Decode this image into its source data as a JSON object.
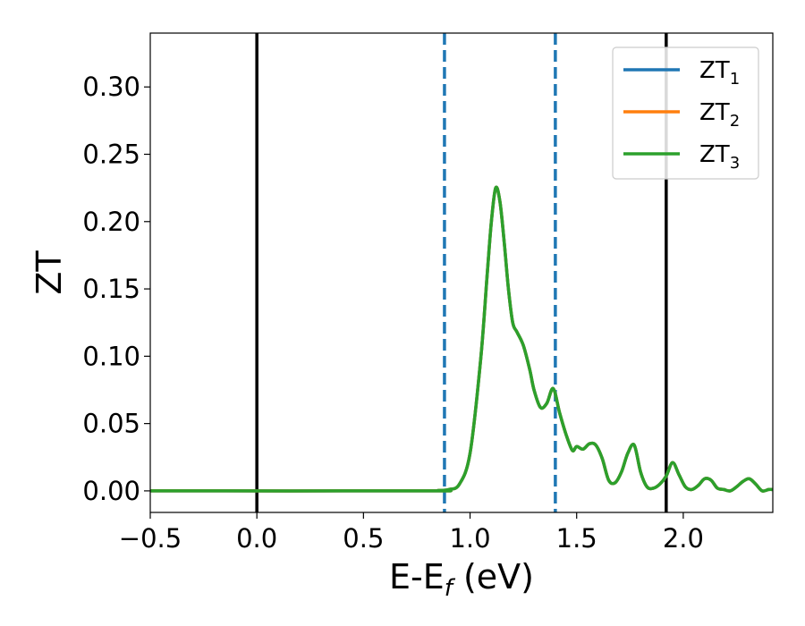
{
  "chart_data": {
    "type": "line",
    "xlabel": "E-E",
    "xlabel_sub": "f",
    "xlabel_unit": " (eV)",
    "ylabel": "ZT",
    "xlim": [
      -0.5,
      2.42
    ],
    "ylim": [
      -0.016,
      0.34
    ],
    "xticks": [
      -0.5,
      0.0,
      0.5,
      1.0,
      1.5,
      2.0
    ],
    "xtick_labels": [
      "−0.5",
      "0.0",
      "0.5",
      "1.0",
      "1.5",
      "2.0"
    ],
    "yticks": [
      0.0,
      0.05,
      0.1,
      0.15,
      0.2,
      0.25,
      0.3
    ],
    "ytick_labels": [
      "0.00",
      "0.05",
      "0.10",
      "0.15",
      "0.20",
      "0.25",
      "0.30"
    ],
    "grid": false,
    "legend_position": "top-right",
    "vlines": [
      {
        "x": 0.0,
        "style": "solid",
        "color": "#000000"
      },
      {
        "x": 1.92,
        "style": "solid",
        "color": "#000000"
      },
      {
        "x": 0.88,
        "style": "dashed",
        "color": "#1f77b4"
      },
      {
        "x": 1.4,
        "style": "dashed",
        "color": "#1f77b4"
      }
    ],
    "x": [
      -0.5,
      0.8,
      0.85,
      0.9,
      0.95,
      1.0,
      1.05,
      1.08,
      1.1,
      1.12,
      1.14,
      1.16,
      1.18,
      1.2,
      1.22,
      1.25,
      1.28,
      1.3,
      1.33,
      1.36,
      1.39,
      1.42,
      1.45,
      1.48,
      1.5,
      1.53,
      1.56,
      1.59,
      1.62,
      1.65,
      1.68,
      1.71,
      1.74,
      1.77,
      1.8,
      1.83,
      1.86,
      1.89,
      1.92,
      1.95,
      1.98,
      2.01,
      2.04,
      2.07,
      2.1,
      2.13,
      2.16,
      2.19,
      2.22,
      2.25,
      2.28,
      2.31,
      2.34,
      2.37,
      2.4,
      2.42
    ],
    "series": [
      {
        "name": "ZT",
        "name_sub": "1",
        "color": "#1f77b4",
        "values": [
          0,
          0,
          0.0003,
          0.001,
          0.005,
          0.028,
          0.098,
          0.16,
          0.2,
          0.225,
          0.215,
          0.185,
          0.15,
          0.125,
          0.118,
          0.108,
          0.09,
          0.075,
          0.062,
          0.065,
          0.076,
          0.058,
          0.042,
          0.03,
          0.033,
          0.031,
          0.035,
          0.034,
          0.024,
          0.008,
          0.006,
          0.014,
          0.028,
          0.034,
          0.014,
          0.003,
          0.002,
          0.005,
          0.011,
          0.021,
          0.012,
          0.003,
          0.001,
          0.004,
          0.009,
          0.008,
          0.002,
          0.001,
          0.0,
          0.003,
          0.007,
          0.009,
          0.005,
          0.0,
          0.001,
          0.001
        ]
      },
      {
        "name": "ZT",
        "name_sub": "2",
        "color": "#ff7f0e",
        "values": [
          0,
          0,
          0.0003,
          0.001,
          0.005,
          0.028,
          0.098,
          0.16,
          0.2,
          0.225,
          0.215,
          0.185,
          0.15,
          0.125,
          0.118,
          0.108,
          0.09,
          0.075,
          0.062,
          0.065,
          0.076,
          0.058,
          0.042,
          0.03,
          0.033,
          0.031,
          0.035,
          0.034,
          0.024,
          0.008,
          0.006,
          0.014,
          0.028,
          0.034,
          0.014,
          0.003,
          0.002,
          0.005,
          0.011,
          0.021,
          0.012,
          0.003,
          0.001,
          0.004,
          0.009,
          0.008,
          0.002,
          0.001,
          0.0,
          0.003,
          0.007,
          0.009,
          0.005,
          0.0,
          0.001,
          0.001
        ]
      },
      {
        "name": "ZT",
        "name_sub": "3",
        "color": "#2ca02c",
        "values": [
          0,
          0,
          0.0003,
          0.001,
          0.005,
          0.028,
          0.098,
          0.16,
          0.2,
          0.225,
          0.215,
          0.185,
          0.15,
          0.125,
          0.118,
          0.108,
          0.09,
          0.075,
          0.062,
          0.065,
          0.076,
          0.058,
          0.042,
          0.03,
          0.033,
          0.031,
          0.035,
          0.034,
          0.024,
          0.008,
          0.006,
          0.014,
          0.028,
          0.034,
          0.014,
          0.003,
          0.002,
          0.005,
          0.011,
          0.021,
          0.012,
          0.003,
          0.001,
          0.004,
          0.009,
          0.008,
          0.002,
          0.001,
          0.0,
          0.003,
          0.007,
          0.009,
          0.005,
          0.0,
          0.001,
          0.001
        ]
      }
    ]
  }
}
